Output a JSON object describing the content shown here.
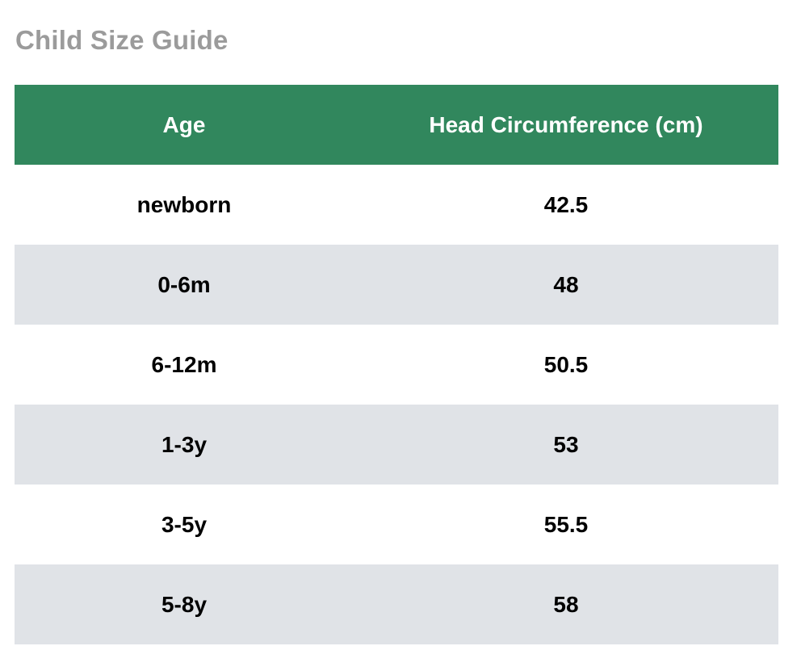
{
  "title": "Child Size Guide",
  "colors": {
    "header_bg": "#31875d",
    "header_text": "#ffffff",
    "stripe_bg": "#e0e3e7",
    "title_text": "#9b9b9b"
  },
  "table": {
    "headers": [
      "Age",
      "Head Circumference (cm)"
    ],
    "rows": [
      [
        "newborn",
        "42.5"
      ],
      [
        "0-6m",
        "48"
      ],
      [
        "6-12m",
        "50.5"
      ],
      [
        "1-3y",
        "53"
      ],
      [
        "3-5y",
        "55.5"
      ],
      [
        "5-8y",
        "58"
      ]
    ]
  }
}
